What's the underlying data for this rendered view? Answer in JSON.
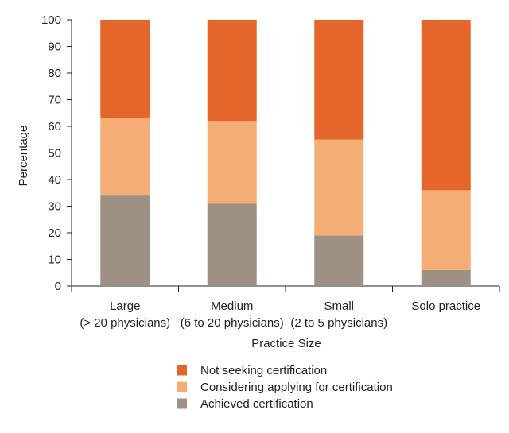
{
  "chart_data": {
    "type": "bar",
    "stacked": true,
    "categories": [
      {
        "line1": "Large",
        "line2": "(> 20 physicians)"
      },
      {
        "line1": "Medium",
        "line2": "(6 to 20 physicians)"
      },
      {
        "line1": "Small",
        "line2": "(2 to 5 physicians)"
      },
      {
        "line1": "Solo practice",
        "line2": ""
      }
    ],
    "series": [
      {
        "name": "Achieved certification",
        "color": "#9e9082",
        "values": [
          34,
          31,
          19,
          6
        ]
      },
      {
        "name": "Considering applying for certification",
        "color": "#f4ad74",
        "values": [
          29,
          31,
          36,
          30
        ]
      },
      {
        "name": "Not seeking certification",
        "color": "#e5662a",
        "values": [
          37,
          38,
          45,
          64
        ]
      }
    ],
    "legend_order": [
      2,
      1,
      0
    ],
    "xlabel": "Practice Size",
    "ylabel": "Percentage",
    "ylim": [
      0,
      100
    ],
    "yticks": [
      0,
      10,
      20,
      30,
      40,
      50,
      60,
      70,
      80,
      90,
      100
    ],
    "grid": false,
    "legend_position": "bottom"
  }
}
